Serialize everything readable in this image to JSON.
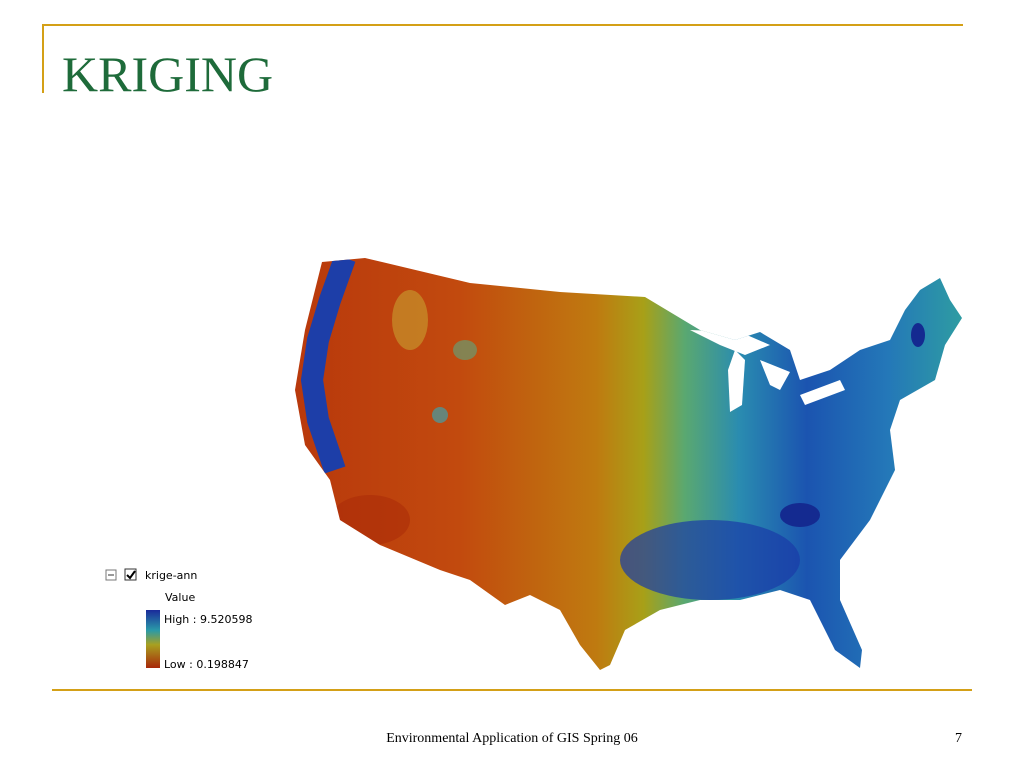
{
  "slide": {
    "title": "KRIGING",
    "legend": {
      "layer": "krige-ann",
      "field": "Value",
      "high": "High : 9.520598",
      "low": "Low : 0.198847"
    },
    "footer": "Environmental Application of GIS Spring 06",
    "page_number": "7"
  }
}
